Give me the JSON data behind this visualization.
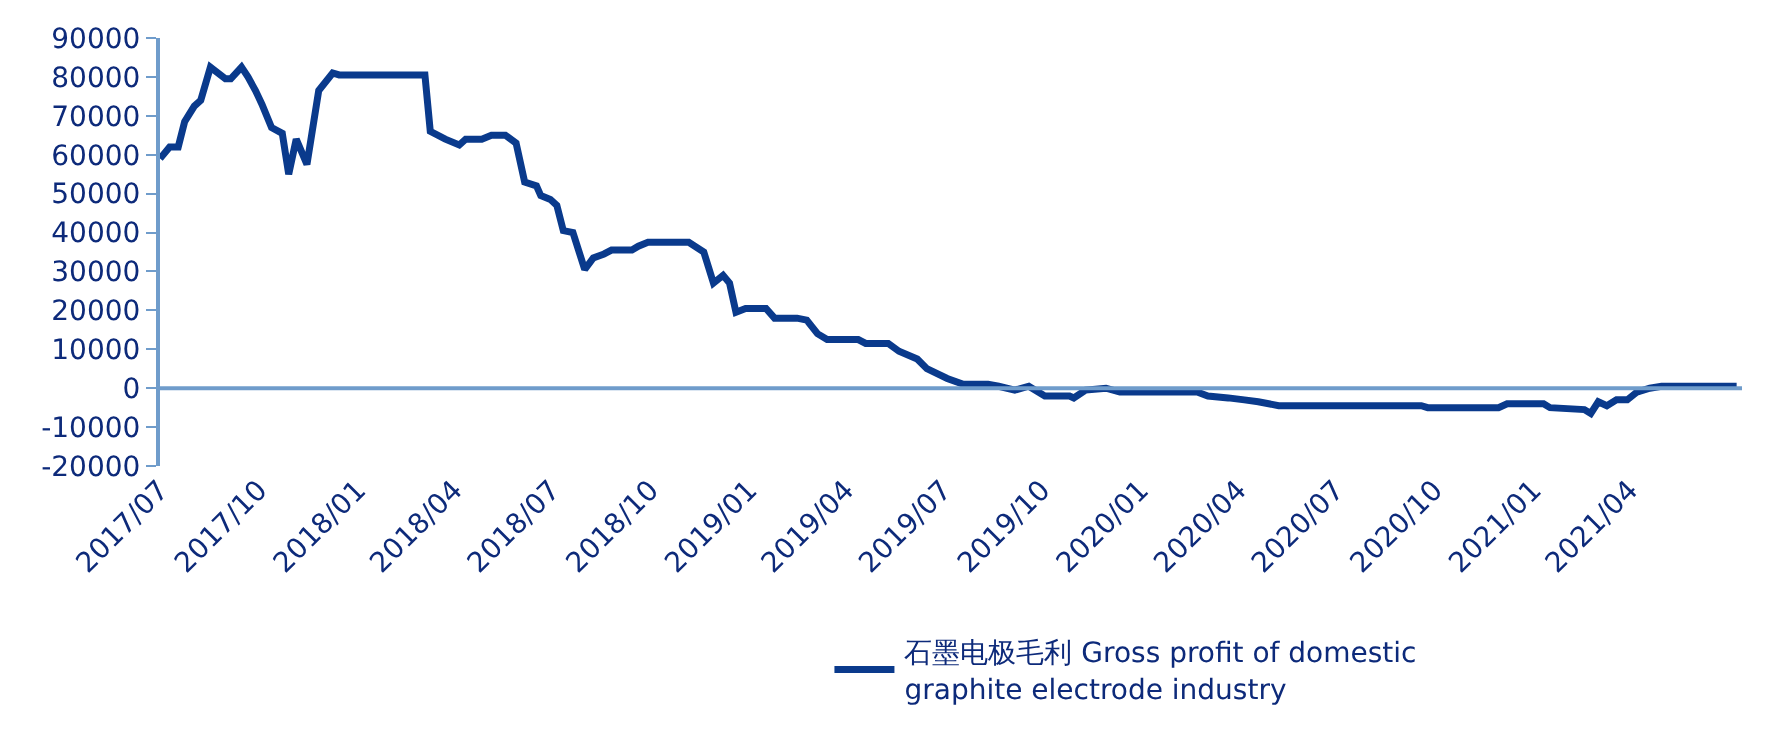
{
  "chart_data": {
    "type": "line",
    "legend": "bottom",
    "grid": false,
    "marker": "none",
    "line_style": "solid",
    "xlim": [
      "2017-07-01",
      "2021-07-15"
    ],
    "xticks": [
      {
        "value": "2017-07-01",
        "label": "2017/07"
      },
      {
        "value": "2017-10-01",
        "label": "2017/10"
      },
      {
        "value": "2018-01-01",
        "label": "2018/01"
      },
      {
        "value": "2018-04-01",
        "label": "2018/04"
      },
      {
        "value": "2018-07-01",
        "label": "2018/07"
      },
      {
        "value": "2018-10-01",
        "label": "2018/10"
      },
      {
        "value": "2019-01-01",
        "label": "2019/01"
      },
      {
        "value": "2019-04-01",
        "label": "2019/04"
      },
      {
        "value": "2019-07-01",
        "label": "2019/07"
      },
      {
        "value": "2019-10-01",
        "label": "2019/10"
      },
      {
        "value": "2020-01-01",
        "label": "2020/01"
      },
      {
        "value": "2020-04-01",
        "label": "2020/04"
      },
      {
        "value": "2020-07-01",
        "label": "2020/07"
      },
      {
        "value": "2020-10-01",
        "label": "2020/10"
      },
      {
        "value": "2021-01-01",
        "label": "2021/01"
      },
      {
        "value": "2021-04-01",
        "label": "2021/04"
      }
    ],
    "ref_lines": [
      {
        "axis": "y",
        "value": 0,
        "color": "#6f9ccb"
      }
    ],
    "ylim": [
      -20000,
      90000
    ],
    "yticks": [
      -20000,
      -10000,
      0,
      10000,
      20000,
      30000,
      40000,
      50000,
      60000,
      70000,
      80000,
      90000
    ],
    "x": [
      "2017-07-01",
      "2017-07-10",
      "2017-07-18",
      "2017-07-24",
      "2017-08-02",
      "2017-08-08",
      "2017-08-17",
      "2017-08-31",
      "2017-09-05",
      "2017-09-15",
      "2017-09-21",
      "2017-09-28",
      "2017-10-04",
      "2017-10-13",
      "2017-10-23",
      "2017-10-29",
      "2017-11-05",
      "2017-11-15",
      "2017-11-26",
      "2017-12-09",
      "2017-12-15",
      "2018-03-05",
      "2018-03-10",
      "2018-03-24",
      "2018-04-06",
      "2018-04-12",
      "2018-04-27",
      "2018-05-06",
      "2018-05-19",
      "2018-05-29",
      "2018-06-06",
      "2018-06-17",
      "2018-06-21",
      "2018-06-30",
      "2018-07-06",
      "2018-07-12",
      "2018-07-21",
      "2018-08-01",
      "2018-08-09",
      "2018-08-19",
      "2018-08-26",
      "2018-09-14",
      "2018-09-20",
      "2018-09-29",
      "2018-11-06",
      "2018-11-20",
      "2018-11-29",
      "2018-12-08",
      "2018-12-14",
      "2018-12-20",
      "2018-12-29",
      "2019-01-17",
      "2019-01-25",
      "2019-02-15",
      "2019-02-24",
      "2019-03-06",
      "2019-03-15",
      "2019-04-13",
      "2019-04-20",
      "2019-05-11",
      "2019-05-21",
      "2019-06-07",
      "2019-06-16",
      "2019-07-05",
      "2019-07-20",
      "2019-08-12",
      "2019-08-22",
      "2019-09-06",
      "2019-09-19",
      "2019-10-04",
      "2019-10-27",
      "2019-10-31",
      "2019-11-11",
      "2019-11-30",
      "2019-12-13",
      "2020-01-17",
      "2020-02-23",
      "2020-03-04",
      "2020-03-23",
      "2020-04-07",
      "2020-04-20",
      "2020-05-09",
      "2020-09-19",
      "2020-09-25",
      "2020-11-30",
      "2020-12-08",
      "2021-01-11",
      "2021-01-17",
      "2021-02-18",
      "2021-02-24",
      "2021-03-03",
      "2021-03-11",
      "2021-03-20",
      "2021-03-30",
      "2021-04-08",
      "2021-04-20",
      "2021-05-01",
      "2021-07-10"
    ],
    "series": [
      {
        "name": "石墨电极毛利 Gross profit of domestic graphite electrode industry",
        "color": "#0a3a8c",
        "values": [
          59000,
          62000,
          62000,
          68500,
          72500,
          74000,
          82500,
          79500,
          79500,
          82500,
          80000,
          76500,
          73000,
          67000,
          65500,
          55000,
          64000,
          57500,
          76500,
          81000,
          80500,
          80500,
          66000,
          64000,
          62500,
          64000,
          64000,
          65000,
          65000,
          63000,
          53000,
          52000,
          49500,
          48500,
          47000,
          40500,
          40000,
          30500,
          33500,
          34500,
          35500,
          35500,
          36500,
          37500,
          37500,
          35000,
          27000,
          29000,
          27000,
          19500,
          20500,
          20500,
          18000,
          18000,
          17500,
          14000,
          12500,
          12500,
          11500,
          11500,
          9500,
          7500,
          5000,
          2500,
          1000,
          1000,
          500,
          -500,
          500,
          -2000,
          -2000,
          -2500,
          -500,
          0,
          -1000,
          -1000,
          -1000,
          -2000,
          -2500,
          -3000,
          -3500,
          -4500,
          -4500,
          -5000,
          -5000,
          -4000,
          -4000,
          -5000,
          -5500,
          -6500,
          -3500,
          -4500,
          -3000,
          -3000,
          -1000,
          0,
          500,
          500
        ]
      }
    ]
  }
}
